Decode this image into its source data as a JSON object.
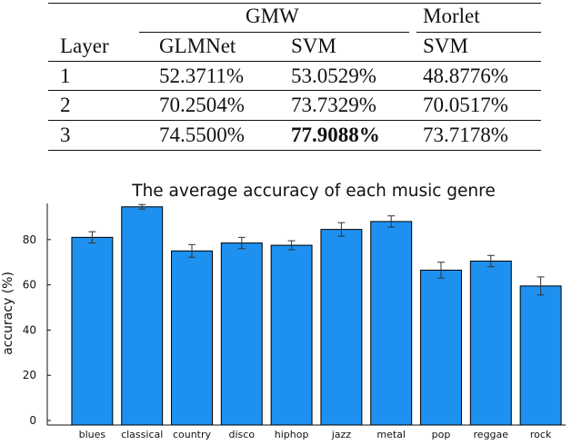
{
  "table": {
    "group_headers": [
      "GMW",
      "Morlet"
    ],
    "column_headers": [
      "Layer",
      "GLMNet",
      "SVM",
      "SVM"
    ],
    "rows": [
      [
        "1",
        "52.3711%",
        "53.0529%",
        "48.8776%"
      ],
      [
        "2",
        "70.2504%",
        "73.7329%",
        "70.0517%"
      ],
      [
        "3",
        "74.5500%",
        "77.9088%",
        "73.7178%"
      ]
    ],
    "bold_cell": {
      "row": 2,
      "col": 2
    }
  },
  "chart_data": {
    "type": "bar",
    "title": "The average accuracy of each music genre",
    "xlabel": "",
    "ylabel": "accuracy (%)",
    "ylim": [
      -2,
      96
    ],
    "yticks": [
      0,
      20,
      40,
      60,
      80
    ],
    "categories": [
      "blues",
      "classical",
      "country",
      "disco",
      "hiphop",
      "jazz",
      "metal",
      "pop",
      "reggae",
      "rock"
    ],
    "values": [
      81,
      94.5,
      75,
      78.5,
      77.5,
      84.5,
      88,
      66.5,
      70.5,
      59.5
    ],
    "errors": [
      2.5,
      1,
      2.8,
      2.5,
      2,
      3,
      2.5,
      3.5,
      2.5,
      4
    ],
    "bar_color": "#1e90ef",
    "grid": false,
    "legend": "none"
  }
}
